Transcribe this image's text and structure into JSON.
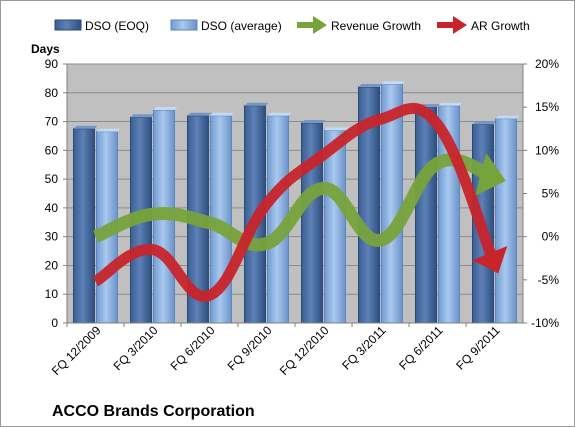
{
  "chart_data": {
    "type": "bar",
    "company_label": "ACCO Brands Corporation",
    "ylabel": "Days",
    "categories": [
      "FQ 12/2009",
      "FQ 3/2010",
      "FQ 6/2010",
      "FQ 9/2010",
      "FQ 12/2010",
      "FQ 3/2011",
      "FQ 6/2011",
      "FQ 9/2011"
    ],
    "ylim": [
      0,
      90
    ],
    "y_ticks": [
      "0",
      "10",
      "20",
      "30",
      "40",
      "50",
      "60",
      "70",
      "80",
      "90"
    ],
    "y2lim": [
      -10,
      20
    ],
    "y2_ticks": [
      "-10%",
      "-5%",
      "0%",
      "5%",
      "10%",
      "15%",
      "20%"
    ],
    "series": [
      {
        "name": "DSO (EOQ)",
        "type": "bar",
        "axis": "left",
        "color": "#4f6fa3",
        "values": [
          67.5,
          71.5,
          72,
          75.5,
          69.5,
          82,
          75,
          69
        ]
      },
      {
        "name": "DSO (average)",
        "type": "bar",
        "axis": "left",
        "color": "#8db3e2",
        "values": [
          66.5,
          74,
          72,
          72,
          67,
          83,
          75.5,
          71
        ]
      },
      {
        "name": "Revenue Growth",
        "type": "line",
        "axis": "right",
        "color": "#77a33c",
        "values": [
          0,
          2.6,
          1.6,
          -0.8,
          5.6,
          -0.4,
          8.5,
          6.8
        ]
      },
      {
        "name": "AR Growth",
        "type": "line",
        "axis": "right",
        "color": "#c8242b",
        "values": [
          -5.2,
          -1.5,
          -6.8,
          3.8,
          9.5,
          13.6,
          13,
          -3.2
        ]
      }
    ],
    "grid": true,
    "legend_position": "top"
  }
}
